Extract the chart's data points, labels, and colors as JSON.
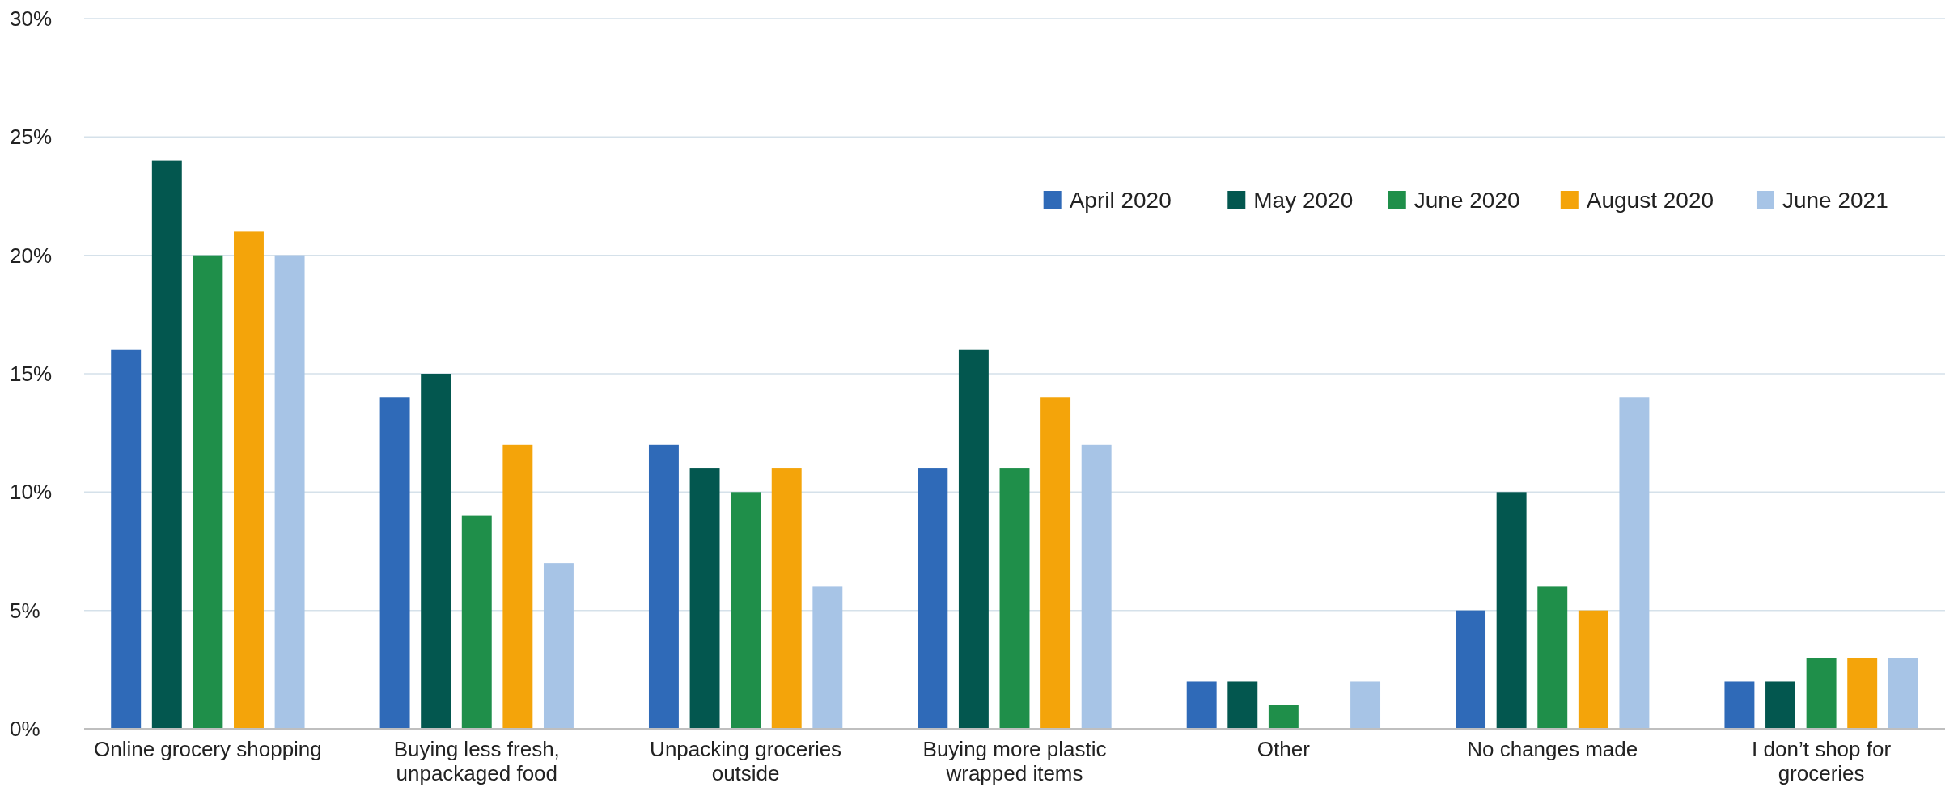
{
  "chart_data": {
    "type": "bar",
    "categories": [
      "Online grocery shopping",
      "Buying less fresh, unpackaged food",
      "Unpacking groceries outside",
      "Buying more plastic wrapped items",
      "Other",
      "No changes made",
      "I don’t shop for groceries"
    ],
    "series": [
      {
        "name": "April 2020",
        "color": "#2f6ab8",
        "values": [
          16,
          14,
          12,
          11,
          2,
          5,
          2
        ]
      },
      {
        "name": "May 2020",
        "color": "#03574f",
        "values": [
          24,
          15,
          11,
          16,
          2,
          10,
          2
        ]
      },
      {
        "name": "June 2020",
        "color": "#1f8f4a",
        "values": [
          20,
          9,
          10,
          11,
          1,
          6,
          3
        ]
      },
      {
        "name": "August 2020",
        "color": "#f4a40a",
        "values": [
          21,
          12,
          11,
          14,
          null,
          5,
          3
        ]
      },
      {
        "name": "June 2021",
        "color": "#a7c4e6",
        "values": [
          20,
          7,
          6,
          12,
          2,
          14,
          3
        ]
      }
    ],
    "ylim": [
      0,
      30
    ],
    "yticks": [
      {
        "value": 0,
        "label": "0%"
      },
      {
        "value": 5,
        "label": "5%"
      },
      {
        "value": 10,
        "label": "10%"
      },
      {
        "value": 15,
        "label": "15%"
      },
      {
        "value": 20,
        "label": "20%"
      },
      {
        "value": 25,
        "label": "25%"
      },
      {
        "value": 30,
        "label": "30%"
      }
    ],
    "grid": "y",
    "legend": "top right"
  }
}
